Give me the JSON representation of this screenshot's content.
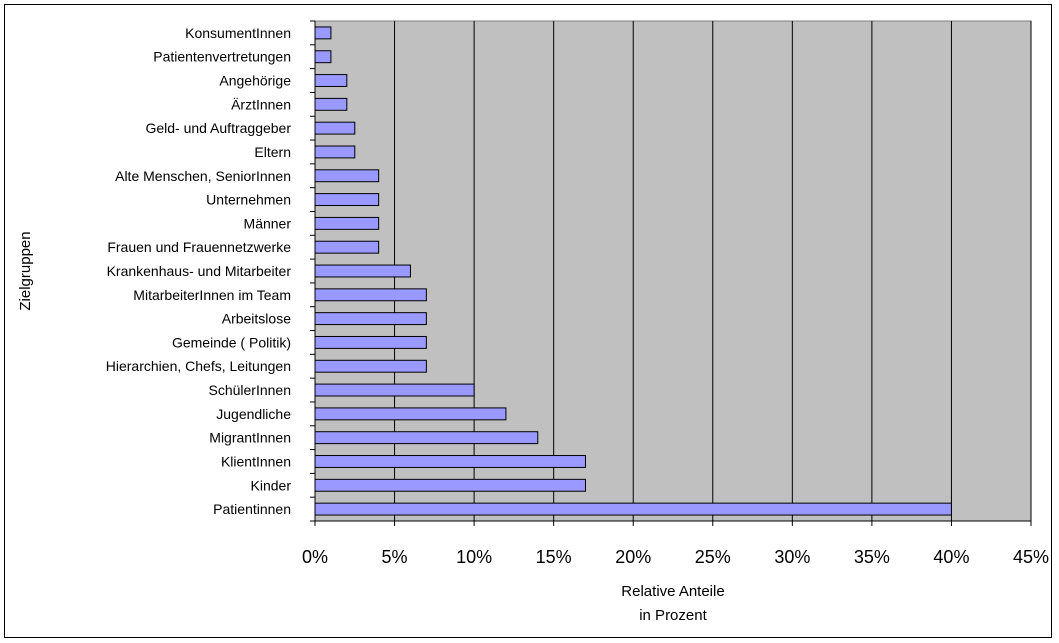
{
  "chart_data": {
    "type": "bar",
    "orientation": "horizontal",
    "categories": [
      "KonsumentInnen",
      "Patientenvertretungen",
      "Angehörige",
      "ÄrztInnen",
      "Geld- und Auftraggeber",
      "Eltern",
      "Alte Menschen, SeniorInnen",
      "Unternehmen",
      "Männer",
      "Frauen und Frauennetzwerke",
      "Krankenhaus- und Mitarbeiter",
      "MitarbeiterInnen im Team",
      "Arbeitslose",
      "Gemeinde ( Politik)",
      "Hierarchien, Chefs, Leitungen",
      "SchülerInnen",
      "Jugendliche",
      "MigrantInnen",
      "KlientInnen",
      "Kinder",
      "Patientinnen"
    ],
    "values": [
      1,
      1,
      2,
      2,
      2.5,
      2.5,
      4,
      4,
      4,
      4,
      6,
      7,
      7,
      7,
      7,
      10,
      12,
      14,
      17,
      17,
      40
    ],
    "unit": "%",
    "xlim": [
      0,
      45
    ],
    "x_ticks": [
      "0%",
      "5%",
      "10%",
      "15%",
      "20%",
      "25%",
      "30%",
      "35%",
      "40%",
      "45%"
    ],
    "ylabel": "Zielgruppen",
    "xlabel_lines": [
      "Relative Anteile",
      "in Prozent"
    ],
    "grid": "vertical",
    "colors": {
      "plot_background": "#c0c0c0",
      "bar_fill": "#9999ff",
      "bar_stroke": "#000000",
      "gridline": "#000000"
    }
  }
}
